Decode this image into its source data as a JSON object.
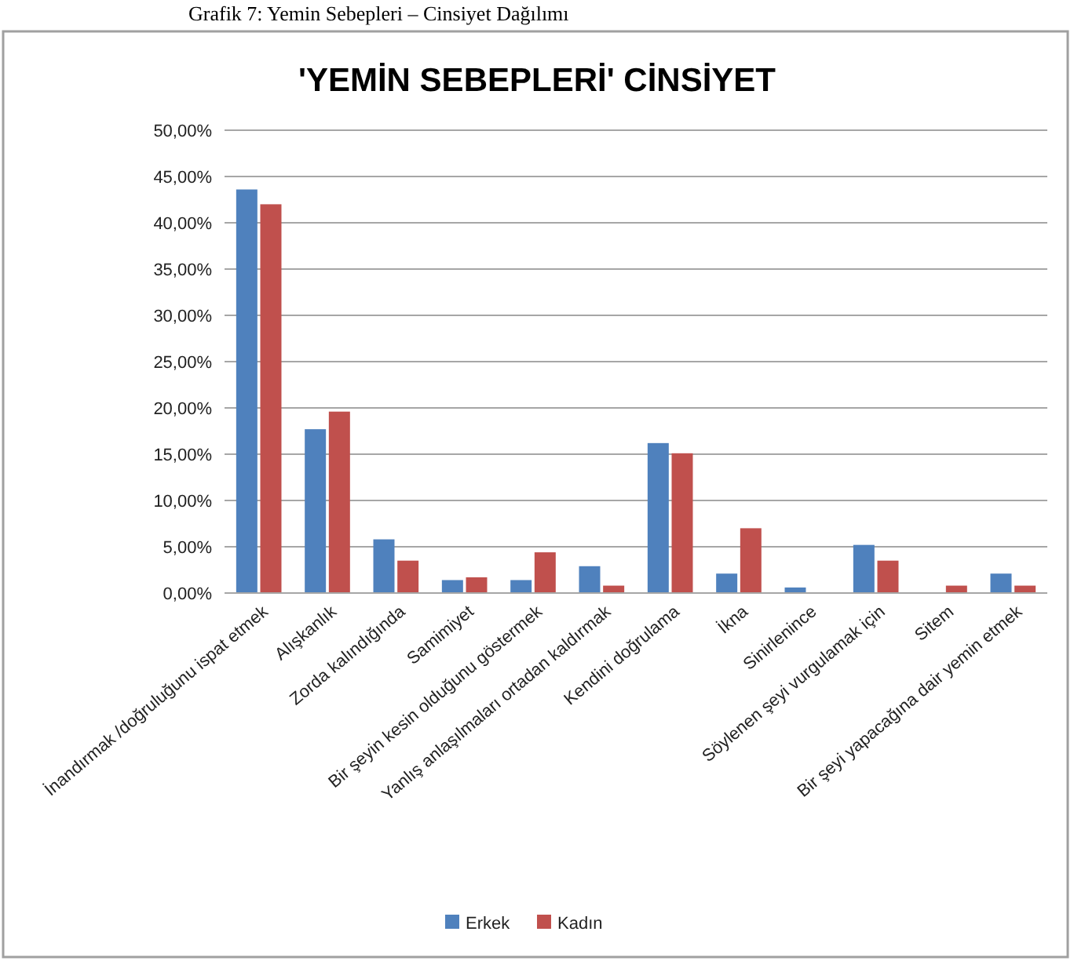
{
  "chart_data": {
    "type": "bar",
    "title": "'YEMİN SEBEPLERİ' CİNSİYET",
    "annotations": [
      "Grafik 7: Yemin Sebepleri – Cinsiyet Dağılımı"
    ],
    "categories": [
      "İnandırmak /doğruluğunu ispat etmek",
      "Alışkanlık",
      "Zorda kalındığında",
      "Samimiyet",
      "Bir şeyin kesin olduğunu göstermek",
      "Yanlış anlaşılmaları ortadan kaldırmak",
      "Kendini doğrulama",
      "İkna",
      "Sinirlenince",
      "Söylenen şeyi vurgulamak için",
      "Sitem",
      "Bir şeyi yapacağına dair yemin etmek"
    ],
    "series": [
      {
        "name": "Erkek",
        "color": "#4f81bd",
        "values": [
          43.6,
          17.7,
          5.8,
          1.4,
          1.4,
          2.9,
          16.2,
          2.1,
          0.6,
          5.2,
          0,
          2.1
        ]
      },
      {
        "name": "Kadın",
        "color": "#c0504d",
        "values": [
          42.0,
          19.6,
          3.5,
          1.7,
          4.4,
          0.8,
          15.1,
          7.0,
          0,
          3.5,
          0.8,
          0.8
        ]
      }
    ],
    "ylim": [
      0,
      50
    ],
    "yticks": [
      {
        "value": 0,
        "label": "0,00%"
      },
      {
        "value": 5,
        "label": "5,00%"
      },
      {
        "value": 10,
        "label": "10,00%"
      },
      {
        "value": 15,
        "label": "15,00%"
      },
      {
        "value": 20,
        "label": "20,00%"
      },
      {
        "value": 25,
        "label": "25,00%"
      },
      {
        "value": 30,
        "label": "30,00%"
      },
      {
        "value": 35,
        "label": "35,00%"
      },
      {
        "value": 40,
        "label": "40,00%"
      },
      {
        "value": 45,
        "label": "45,00%"
      },
      {
        "value": 50,
        "label": "50,00%"
      }
    ],
    "grid": "y",
    "legend": "bottom"
  }
}
